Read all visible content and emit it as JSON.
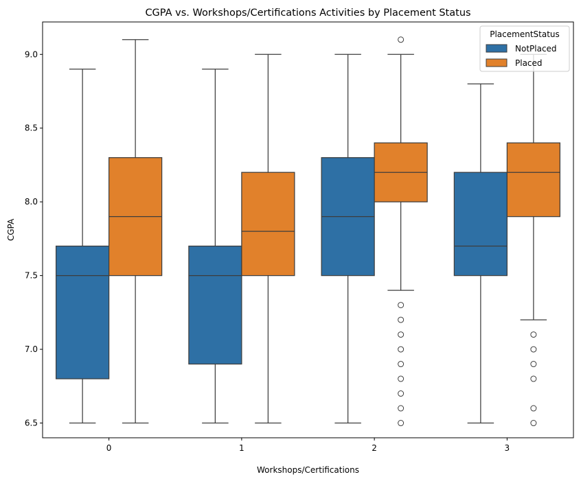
{
  "chart_data": {
    "type": "boxplot",
    "title": "CGPA vs. Workshops/Certifications Activities by Placement Status",
    "xlabel": "Workshops/Certifications",
    "ylabel": "CGPA",
    "categories": [
      "0",
      "1",
      "2",
      "3"
    ],
    "ylim": [
      6.4,
      9.22
    ],
    "yticks": [
      "6.5",
      "7.0",
      "7.5",
      "8.0",
      "8.5",
      "9.0"
    ],
    "legend": {
      "title": "PlacementStatus",
      "position": "top-right"
    },
    "series": [
      {
        "name": "NotPlaced",
        "color": "#2e70a5",
        "boxes": [
          {
            "category": "0",
            "whislo": 6.5,
            "q1": 6.8,
            "med": 7.5,
            "q3": 7.7,
            "whishi": 8.9,
            "fliers": []
          },
          {
            "category": "1",
            "whislo": 6.5,
            "q1": 6.9,
            "med": 7.5,
            "q3": 7.7,
            "whishi": 8.9,
            "fliers": []
          },
          {
            "category": "2",
            "whislo": 6.5,
            "q1": 7.5,
            "med": 7.9,
            "q3": 8.3,
            "whishi": 9.0,
            "fliers": []
          },
          {
            "category": "3",
            "whislo": 6.5,
            "q1": 7.5,
            "med": 7.7,
            "q3": 8.2,
            "whishi": 8.8,
            "fliers": []
          }
        ]
      },
      {
        "name": "Placed",
        "color": "#e1812b",
        "boxes": [
          {
            "category": "0",
            "whislo": 6.5,
            "q1": 7.5,
            "med": 7.9,
            "q3": 8.3,
            "whishi": 9.1,
            "fliers": []
          },
          {
            "category": "1",
            "whislo": 6.5,
            "q1": 7.5,
            "med": 7.8,
            "q3": 8.2,
            "whishi": 9.0,
            "fliers": []
          },
          {
            "category": "2",
            "whislo": 7.4,
            "q1": 8.0,
            "med": 8.2,
            "q3": 8.4,
            "whishi": 9.0,
            "fliers": [
              9.1,
              7.3,
              7.2,
              7.1,
              7.0,
              6.9,
              6.8,
              6.7,
              6.6,
              6.5
            ]
          },
          {
            "category": "3",
            "whislo": 7.2,
            "q1": 7.9,
            "med": 8.2,
            "q3": 8.4,
            "whishi": 9.0,
            "fliers": [
              7.1,
              7.0,
              6.9,
              6.8,
              6.6,
              6.5
            ]
          }
        ]
      }
    ]
  }
}
